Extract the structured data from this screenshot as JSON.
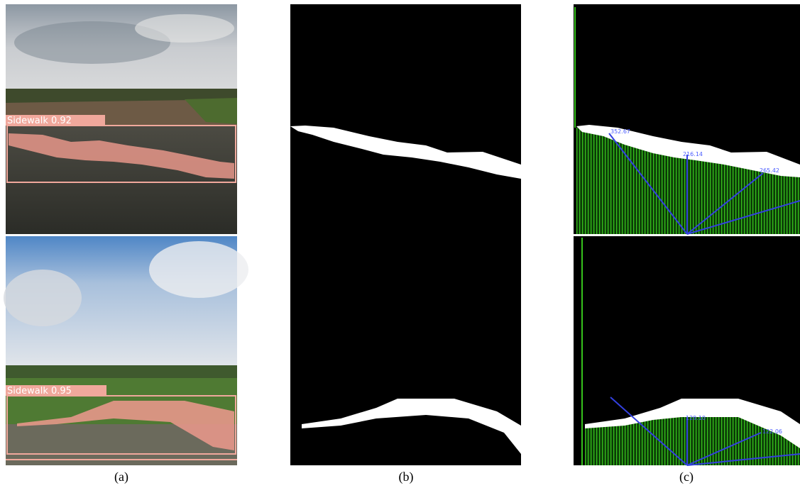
{
  "captions": [
    "(a)",
    "(b)",
    "(c)"
  ],
  "detections": [
    "Sidewalk 0.92",
    "Sidewalk 0.95"
  ],
  "measurements": {
    "top": [
      "352.67",
      "216.14",
      "265.42"
    ],
    "bottom": [
      "129.10",
      "122.06"
    ]
  }
}
